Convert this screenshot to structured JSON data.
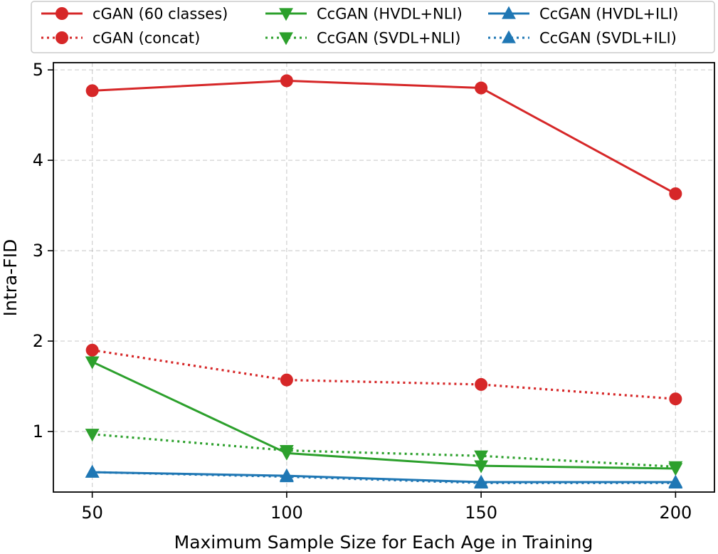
{
  "chart_data": {
    "type": "line",
    "title": "",
    "xlabel": "Maximum Sample Size for Each Age in Training",
    "ylabel": "Intra-FID",
    "x": [
      50,
      100,
      150,
      200
    ],
    "xticks": [
      50,
      100,
      150,
      200
    ],
    "xtick_labels": [
      "50",
      "100",
      "150",
      "200"
    ],
    "yticks": [
      1,
      2,
      3,
      4,
      5
    ],
    "ytick_labels": [
      "1",
      "2",
      "3",
      "4",
      "5"
    ],
    "xlim": [
      40,
      210
    ],
    "ylim": [
      0.33,
      5.08
    ],
    "grid": true,
    "legend_position": "top",
    "series": [
      {
        "name": "cGAN (60 classes)",
        "values": [
          4.77,
          4.88,
          4.8,
          3.63
        ],
        "color": "#d62728",
        "linestyle": "solid",
        "marker": "circle"
      },
      {
        "name": "cGAN (concat)",
        "values": [
          1.9,
          1.57,
          1.52,
          1.36
        ],
        "color": "#d62728",
        "linestyle": "dotted",
        "marker": "circle"
      },
      {
        "name": "CcGAN (HVDL+NLI)",
        "values": [
          1.77,
          0.76,
          0.62,
          0.59
        ],
        "color": "#2ca02c",
        "linestyle": "solid",
        "marker": "triangle-down"
      },
      {
        "name": "CcGAN (SVDL+NLI)",
        "values": [
          0.97,
          0.79,
          0.73,
          0.61
        ],
        "color": "#2ca02c",
        "linestyle": "dotted",
        "marker": "triangle-down"
      },
      {
        "name": "CcGAN (HVDL+ILI)",
        "values": [
          0.55,
          0.51,
          0.44,
          0.44
        ],
        "color": "#1f77b4",
        "linestyle": "solid",
        "marker": "triangle-up"
      },
      {
        "name": "CcGAN (SVDL+ILI)",
        "values": [
          0.55,
          0.5,
          0.43,
          0.43
        ],
        "color": "#1f77b4",
        "linestyle": "dotted",
        "marker": "triangle-up"
      }
    ]
  }
}
